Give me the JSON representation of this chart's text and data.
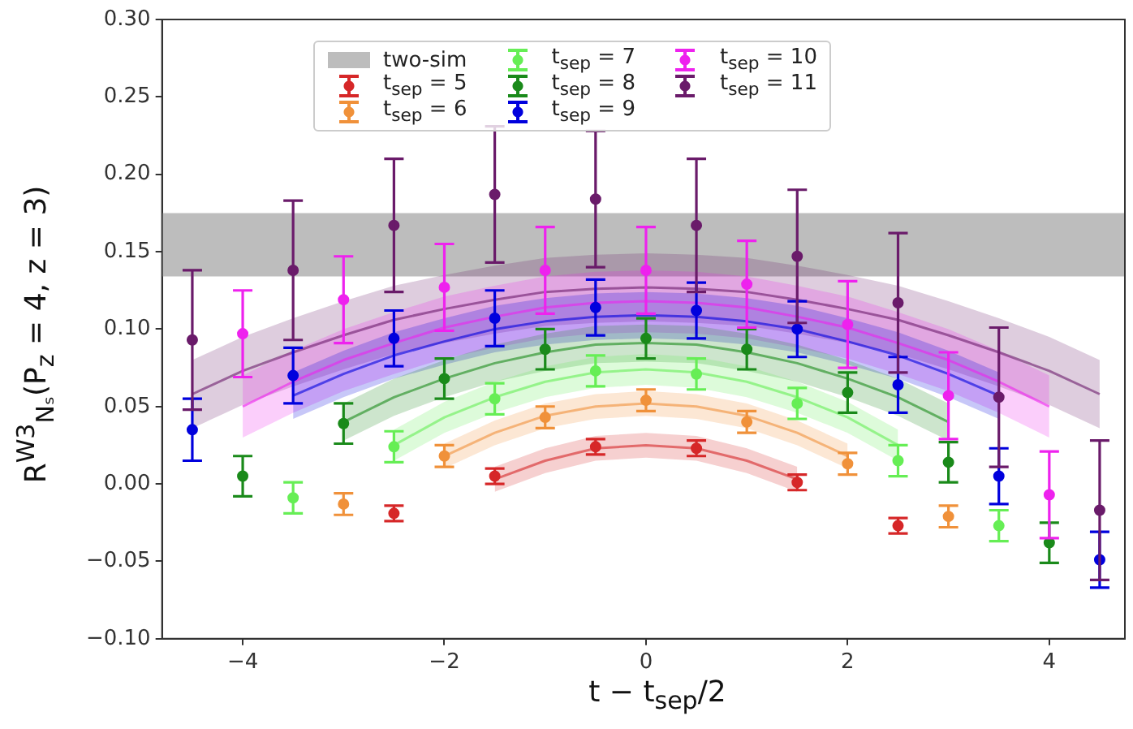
{
  "chart_data": {
    "type": "scatter",
    "xlabel": "t − t$_{sep}$/2",
    "ylabel": "R$^{W3}$$_{Nₛ}$(P$_{z}$ = 4, z = 3)",
    "xlim": [
      -4.8,
      4.75
    ],
    "xticks": [
      {
        "value": -4,
        "label": "−4"
      },
      {
        "value": -2,
        "label": "−2"
      },
      0,
      2,
      4
    ],
    "ylim": [
      -0.1,
      0.3
    ],
    "yticks": [
      {
        "value": -0.1,
        "label": "−0.10"
      },
      {
        "value": -0.05,
        "label": "−0.05"
      },
      {
        "value": 0,
        "label": "0.00"
      },
      {
        "value": 0.05,
        "label": "0.05"
      },
      {
        "value": 0.1,
        "label": "0.10"
      },
      {
        "value": 0.15,
        "label": "0.15"
      },
      {
        "value": 0.2,
        "label": "0.20"
      },
      {
        "value": 0.25,
        "label": "0.25"
      },
      {
        "value": 0.3,
        "label": "0.30"
      }
    ],
    "grid": false,
    "legend": "top",
    "marker": "circle",
    "bands": [
      {
        "axis": "y",
        "from": 0.134,
        "to": 0.175,
        "label": "two-sim",
        "color": "#bdbdbd"
      }
    ],
    "series": [
      {
        "type": "line",
        "marker": "none",
        "color": "#d62728",
        "x": [
          -1.5,
          -1,
          -0.5,
          0,
          0.5,
          1,
          1.5
        ],
        "values": [
          0.003,
          0.015,
          0.023,
          0.025,
          0.023,
          0.015,
          0.003
        ],
        "lower": [
          -0.005,
          0.007,
          0.015,
          0.017,
          0.015,
          0.007,
          -0.005
        ],
        "upper": [
          0.011,
          0.023,
          0.031,
          0.033,
          0.031,
          0.023,
          0.011
        ]
      },
      {
        "type": "line",
        "marker": "none",
        "color": "#f0913a",
        "x": [
          -2,
          -1.5,
          -1,
          -0.5,
          0,
          0.5,
          1,
          1.5,
          2
        ],
        "values": [
          0.018,
          0.033,
          0.044,
          0.05,
          0.052,
          0.05,
          0.044,
          0.033,
          0.018
        ],
        "lower": [
          0.01,
          0.025,
          0.036,
          0.042,
          0.044,
          0.042,
          0.036,
          0.025,
          0.01
        ],
        "upper": [
          0.026,
          0.041,
          0.052,
          0.058,
          0.06,
          0.058,
          0.052,
          0.041,
          0.026
        ]
      },
      {
        "type": "line",
        "marker": "none",
        "color": "#66ee55",
        "x": [
          -2.5,
          -2,
          -1.5,
          -1,
          -0.5,
          0,
          0.5,
          1,
          1.5,
          2,
          2.5
        ],
        "values": [
          0.025,
          0.043,
          0.056,
          0.066,
          0.072,
          0.074,
          0.072,
          0.066,
          0.056,
          0.043,
          0.025
        ],
        "lower": [
          0.015,
          0.033,
          0.046,
          0.056,
          0.062,
          0.064,
          0.062,
          0.056,
          0.046,
          0.033,
          0.015
        ],
        "upper": [
          0.035,
          0.053,
          0.066,
          0.076,
          0.082,
          0.084,
          0.082,
          0.076,
          0.066,
          0.053,
          0.035
        ]
      },
      {
        "type": "line",
        "marker": "none",
        "color": "#1a8a1a",
        "x": [
          -3,
          -2.5,
          -2,
          -1.5,
          -1,
          -0.5,
          0,
          0.5,
          1,
          1.5,
          2,
          2.5,
          3
        ],
        "values": [
          0.04,
          0.056,
          0.068,
          0.078,
          0.085,
          0.09,
          0.091,
          0.09,
          0.085,
          0.078,
          0.068,
          0.056,
          0.04
        ],
        "lower": [
          0.028,
          0.044,
          0.056,
          0.066,
          0.073,
          0.078,
          0.079,
          0.078,
          0.073,
          0.066,
          0.056,
          0.044,
          0.028
        ],
        "upper": [
          0.052,
          0.068,
          0.08,
          0.09,
          0.097,
          0.102,
          0.103,
          0.102,
          0.097,
          0.09,
          0.08,
          0.068,
          0.052
        ]
      },
      {
        "type": "line",
        "marker": "none",
        "color": "#0000dd",
        "x": [
          -3.5,
          -3,
          -2.5,
          -2,
          -1.5,
          -1,
          -0.5,
          0,
          0.5,
          1,
          1.5,
          2,
          2.5,
          3,
          3.5
        ],
        "values": [
          0.057,
          0.071,
          0.083,
          0.092,
          0.1,
          0.105,
          0.108,
          0.109,
          0.108,
          0.105,
          0.1,
          0.092,
          0.083,
          0.071,
          0.057
        ],
        "lower": [
          0.042,
          0.056,
          0.068,
          0.077,
          0.085,
          0.09,
          0.093,
          0.094,
          0.093,
          0.09,
          0.085,
          0.077,
          0.068,
          0.056,
          0.042
        ],
        "upper": [
          0.072,
          0.086,
          0.098,
          0.107,
          0.115,
          0.12,
          0.123,
          0.124,
          0.123,
          0.12,
          0.115,
          0.107,
          0.098,
          0.086,
          0.072
        ]
      },
      {
        "type": "line",
        "marker": "none",
        "color": "#ee22ee",
        "x": [
          -4,
          -3.5,
          -3,
          -2.5,
          -2,
          -1.5,
          -1,
          -0.5,
          0,
          0.5,
          1,
          1.5,
          2,
          2.5,
          3,
          3.5,
          4
        ],
        "values": [
          0.05,
          0.066,
          0.08,
          0.091,
          0.101,
          0.108,
          0.114,
          0.117,
          0.118,
          0.117,
          0.114,
          0.108,
          0.101,
          0.091,
          0.08,
          0.066,
          0.05
        ],
        "lower": [
          0.03,
          0.046,
          0.06,
          0.071,
          0.081,
          0.088,
          0.094,
          0.097,
          0.098,
          0.097,
          0.094,
          0.088,
          0.081,
          0.071,
          0.06,
          0.046,
          0.03
        ],
        "upper": [
          0.07,
          0.086,
          0.1,
          0.111,
          0.121,
          0.128,
          0.134,
          0.137,
          0.138,
          0.137,
          0.134,
          0.128,
          0.121,
          0.111,
          0.1,
          0.086,
          0.07
        ]
      },
      {
        "type": "line",
        "marker": "none",
        "color": "#6a1b6a",
        "x": [
          -4.5,
          -4,
          -3.5,
          -3,
          -2.5,
          -2,
          -1.5,
          -1,
          -0.5,
          0,
          0.5,
          1,
          1.5,
          2,
          2.5,
          3,
          3.5,
          4,
          4.5
        ],
        "values": [
          0.058,
          0.073,
          0.085,
          0.096,
          0.106,
          0.113,
          0.119,
          0.124,
          0.126,
          0.127,
          0.126,
          0.124,
          0.119,
          0.113,
          0.106,
          0.096,
          0.085,
          0.073,
          0.058
        ],
        "lower": [
          0.036,
          0.051,
          0.063,
          0.074,
          0.084,
          0.091,
          0.097,
          0.102,
          0.104,
          0.105,
          0.104,
          0.102,
          0.097,
          0.091,
          0.084,
          0.074,
          0.063,
          0.051,
          0.036
        ],
        "upper": [
          0.08,
          0.095,
          0.107,
          0.118,
          0.128,
          0.135,
          0.141,
          0.146,
          0.148,
          0.149,
          0.148,
          0.146,
          0.141,
          0.135,
          0.128,
          0.118,
          0.107,
          0.095,
          0.08
        ]
      },
      {
        "type": "scatter",
        "name": "t$_{sep}$ = 5",
        "color": "#d62728",
        "x": [
          -2.5,
          -1.5,
          -0.5,
          0.5,
          1.5,
          2.5
        ],
        "values": [
          -0.019,
          0.005,
          0.024,
          0.023,
          0.001,
          -0.027
        ],
        "errors": [
          0.005,
          0.005,
          0.005,
          0.005,
          0.005,
          0.005
        ]
      },
      {
        "type": "scatter",
        "name": "t$_{sep}$ = 6",
        "color": "#f0913a",
        "x": [
          -3,
          -2,
          -1,
          0,
          1,
          2,
          3
        ],
        "values": [
          -0.013,
          0.018,
          0.043,
          0.054,
          0.04,
          0.013,
          -0.021
        ],
        "errors": [
          0.007,
          0.007,
          0.007,
          0.007,
          0.007,
          0.007,
          0.007
        ]
      },
      {
        "type": "scatter",
        "name": "t$_{sep}$ = 7",
        "color": "#66ee55",
        "x": [
          -3.5,
          -2.5,
          -1.5,
          -0.5,
          0.5,
          1.5,
          2.5,
          3.5
        ],
        "values": [
          -0.009,
          0.024,
          0.055,
          0.073,
          0.071,
          0.052,
          0.015,
          -0.027
        ],
        "errors": [
          0.01,
          0.01,
          0.01,
          0.01,
          0.01,
          0.01,
          0.01,
          0.01
        ]
      },
      {
        "type": "scatter",
        "name": "t$_{sep}$ = 8",
        "color": "#1a8a1a",
        "x": [
          -4,
          -3,
          -2,
          -1,
          0,
          1,
          2,
          3,
          4
        ],
        "values": [
          0.005,
          0.039,
          0.068,
          0.087,
          0.094,
          0.087,
          0.059,
          0.014,
          -0.038
        ],
        "errors": [
          0.013,
          0.013,
          0.013,
          0.013,
          0.013,
          0.013,
          0.013,
          0.013,
          0.013
        ]
      },
      {
        "type": "scatter",
        "name": "t$_{sep}$ = 9",
        "color": "#0000dd",
        "x": [
          -4.5,
          -3.5,
          -2.5,
          -1.5,
          -0.5,
          0.5,
          1.5,
          2.5,
          3.5,
          4.5
        ],
        "values": [
          0.035,
          0.07,
          0.094,
          0.107,
          0.114,
          0.112,
          0.1,
          0.064,
          0.005,
          -0.049
        ],
        "errors": [
          0.02,
          0.018,
          0.018,
          0.018,
          0.018,
          0.018,
          0.018,
          0.018,
          0.018,
          0.018
        ]
      },
      {
        "type": "scatter",
        "name": "t$_{sep}$ = 10",
        "color": "#ee22ee",
        "x": [
          -4,
          -3,
          -2,
          -1,
          0,
          1,
          2,
          3,
          4
        ],
        "values": [
          0.097,
          0.119,
          0.127,
          0.138,
          0.138,
          0.129,
          0.103,
          0.057,
          -0.007
        ],
        "errors": [
          0.028,
          0.028,
          0.028,
          0.028,
          0.028,
          0.028,
          0.028,
          0.028,
          0.028
        ]
      },
      {
        "type": "scatter",
        "name": "t$_{sep}$ = 11",
        "color": "#6a1b6a",
        "x": [
          -4.5,
          -3.5,
          -2.5,
          -1.5,
          -0.5,
          0.5,
          1.5,
          2.5,
          3.5,
          4.5
        ],
        "values": [
          0.093,
          0.138,
          0.167,
          0.187,
          0.184,
          0.167,
          0.147,
          0.117,
          0.056,
          -0.017
        ],
        "errors": [
          0.045,
          0.045,
          0.043,
          0.044,
          0.044,
          0.043,
          0.043,
          0.045,
          0.045,
          0.045
        ]
      }
    ]
  }
}
